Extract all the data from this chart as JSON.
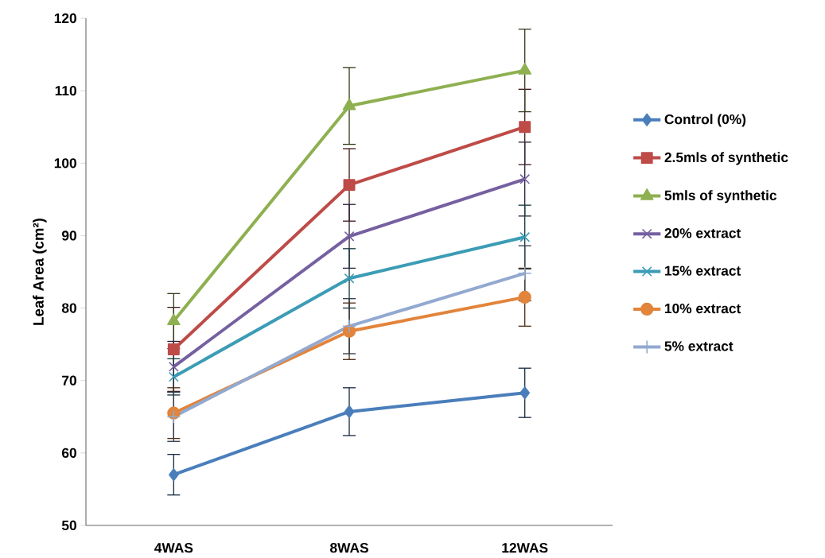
{
  "chart_data": {
    "type": "line",
    "ylabel": "Leaf   Area   (cm²)",
    "categories": [
      "4WAS",
      "8WAS",
      "12WAS"
    ],
    "ylim": [
      50,
      120
    ],
    "yticks": [
      50,
      60,
      70,
      80,
      90,
      100,
      110,
      120
    ],
    "grid": false,
    "legend": "right",
    "series": [
      {
        "name": "Control (0%)",
        "color": "#4a7ebb",
        "marker": "diamond",
        "values": [
          57.0,
          65.7,
          68.3
        ],
        "errors": [
          2.8,
          3.3,
          3.4
        ]
      },
      {
        "name": "2.5mls of synthetic",
        "color": "#be4b48",
        "marker": "square",
        "values": [
          74.3,
          97.0,
          105.0
        ],
        "errors": [
          5.8,
          5.0,
          5.2
        ]
      },
      {
        "name": "5mls of synthetic",
        "color": "#8eb050",
        "marker": "triangle",
        "values": [
          78.2,
          107.9,
          112.8
        ],
        "errors": [
          3.8,
          5.3,
          5.7
        ]
      },
      {
        "name": "20% extract",
        "color": "#7560a0",
        "marker": "cross",
        "values": [
          71.9,
          89.9,
          97.8
        ],
        "errors": [
          3.5,
          4.4,
          5.1
        ]
      },
      {
        "name": "15% extract",
        "color": "#3c9cb5",
        "marker": "cross",
        "values": [
          70.5,
          84.1,
          89.8
        ],
        "errors": [
          2.5,
          4.1,
          4.4
        ]
      },
      {
        "name": "10% extract",
        "color": "#e2843b",
        "marker": "circle",
        "values": [
          65.5,
          76.8,
          81.5
        ],
        "errors": [
          3.5,
          3.9,
          4.0
        ]
      },
      {
        "name": "5% extract",
        "color": "#92a9d0",
        "marker": "plus",
        "values": [
          65.0,
          77.5,
          84.8
        ],
        "errors": [
          3.4,
          3.8,
          3.8
        ]
      }
    ]
  }
}
